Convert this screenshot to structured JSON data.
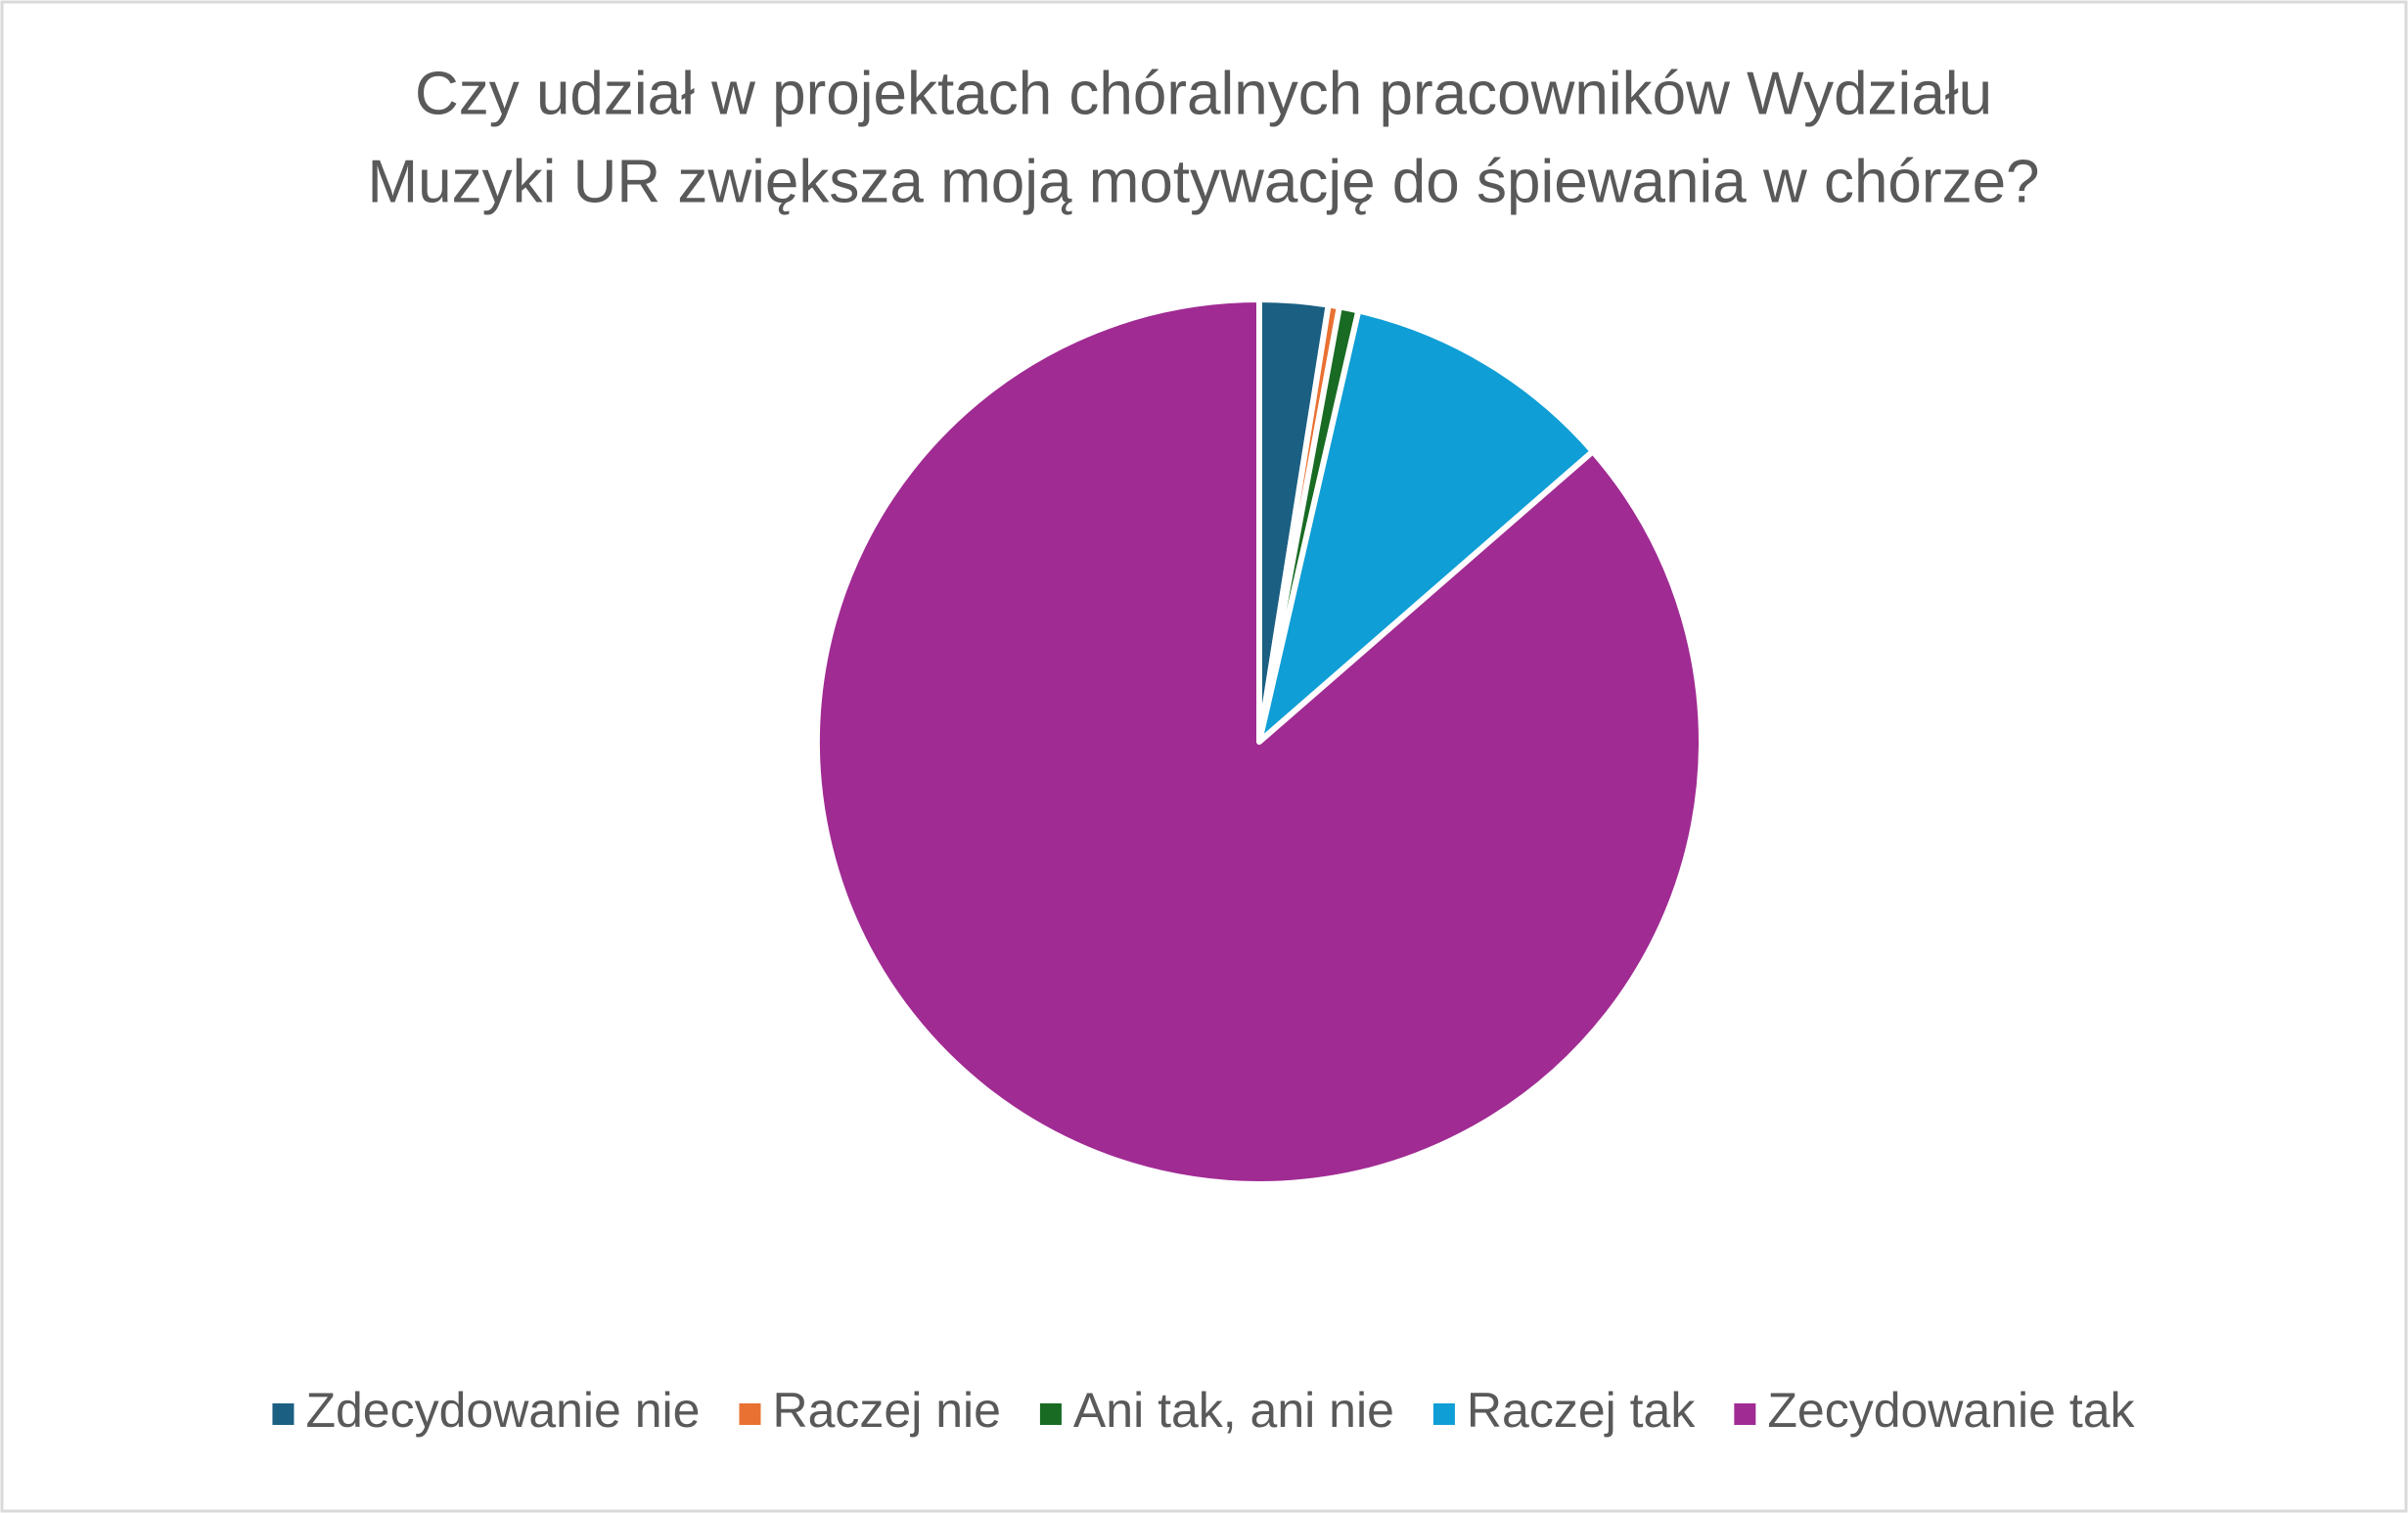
{
  "chart_data": {
    "type": "pie",
    "title": [
      "Czy udział w projektach chóralnych pracowników Wydziału",
      "Muzyki UR zwiększa moją motywację do śpiewania w chórze?"
    ],
    "categories": [
      "Zdecydowanie nie",
      "Raczej nie",
      "Ani tak, ani nie",
      "Raczej tak",
      "Zecydowanie tak"
    ],
    "values": [
      2.5,
      0.4,
      0.7,
      10,
      86.4
    ],
    "colors": [
      "#1b5f83",
      "#e97132",
      "#196b24",
      "#0f9ed5",
      "#a02b93"
    ],
    "legend": "bottom"
  }
}
